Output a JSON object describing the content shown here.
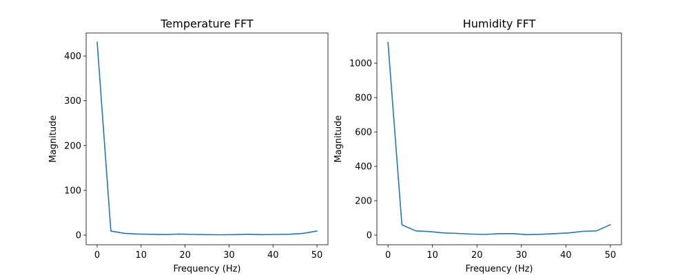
{
  "chart_data": [
    {
      "type": "line",
      "title": "Temperature FFT",
      "xlabel": "Frequency (Hz)",
      "ylabel": "Magnitude",
      "xlim": [
        -2.5,
        52.5
      ],
      "ylim": [
        -21.5,
        451.5
      ],
      "xticks": [
        0,
        10,
        20,
        30,
        40,
        50
      ],
      "yticks": [
        0,
        100,
        200,
        300,
        400
      ],
      "grid": false,
      "color": "#1f77b4",
      "x": [
        0,
        3.125,
        6.25,
        9.375,
        12.5,
        15.625,
        18.75,
        21.875,
        25,
        28.125,
        31.25,
        34.375,
        37.5,
        40.625,
        43.75,
        46.875,
        50
      ],
      "values": [
        431,
        9,
        4,
        2.5,
        1.8,
        1.2,
        2.5,
        1.5,
        1,
        0.8,
        1,
        2,
        1,
        1.5,
        2,
        4,
        9
      ]
    },
    {
      "type": "line",
      "title": "Humidity FFT",
      "xlabel": "Frequency (Hz)",
      "ylabel": "Magnitude",
      "xlim": [
        -2.5,
        52.5
      ],
      "ylim": [
        -56,
        1176
      ],
      "xticks": [
        0,
        10,
        20,
        30,
        40,
        50
      ],
      "yticks": [
        0,
        200,
        400,
        600,
        800,
        1000
      ],
      "grid": false,
      "color": "#1f77b4",
      "x": [
        0,
        3.125,
        6.25,
        9.375,
        12.5,
        15.625,
        18.75,
        21.875,
        25,
        28.125,
        31.25,
        34.375,
        37.5,
        40.625,
        43.75,
        46.875,
        50
      ],
      "values": [
        1122,
        60,
        25,
        21,
        13,
        10,
        6,
        4,
        9,
        9,
        3,
        5,
        9,
        13,
        22,
        25,
        61
      ]
    }
  ]
}
